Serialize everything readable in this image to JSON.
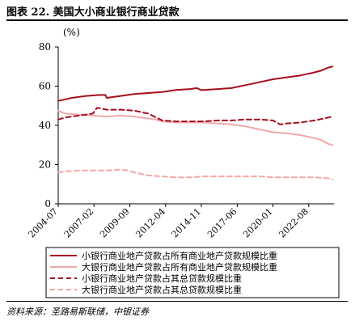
{
  "title": "图表 22. 美国大小商业银行商业贷款",
  "source": "资料来源：圣路易斯联储，中银证券",
  "colors": {
    "dark": "#a50f1e",
    "light": "#f2a7a9"
  },
  "chart_data": {
    "type": "line",
    "ylabel": "(%)",
    "ylim": [
      0,
      80
    ],
    "yticks": [
      "0",
      "20",
      "40",
      "60",
      "80"
    ],
    "xlim": [
      2004.5,
      2024.4
    ],
    "xticks": [
      {
        "label": "2004-07",
        "x": 2004.5
      },
      {
        "label": "2007-02",
        "x": 2007.08
      },
      {
        "label": "2009-09",
        "x": 2009.67
      },
      {
        "label": "2012-04",
        "x": 2012.25
      },
      {
        "label": "2014-11",
        "x": 2014.83
      },
      {
        "label": "2017-06",
        "x": 2017.42
      },
      {
        "label": "2020-01",
        "x": 2020.0
      },
      {
        "label": "2022-08",
        "x": 2022.58
      }
    ],
    "grid": false,
    "legend_position": "bottom",
    "series": [
      {
        "name": "小银行商业地产贷款占所有商业地产贷款规模比重",
        "color": "#a50f1e",
        "dash": "solid",
        "x": [
          2004.5,
          2005.5,
          2006.5,
          2007.5,
          2007.9,
          2008.0,
          2009.0,
          2010.0,
          2011.0,
          2012.0,
          2013.0,
          2014.0,
          2014.5,
          2014.8,
          2015.0,
          2016.0,
          2017.0,
          2018.0,
          2019.0,
          2020.0,
          2021.0,
          2022.0,
          2023.0,
          2023.5,
          2024.0,
          2024.3
        ],
        "y": [
          52.5,
          54,
          55,
          55.5,
          55.5,
          54,
          55,
          56,
          56.5,
          57,
          58,
          58.5,
          59,
          58,
          58,
          58.5,
          59,
          60.5,
          62,
          63.5,
          64.5,
          65.5,
          67,
          68,
          69.5,
          70
        ]
      },
      {
        "name": "大银行商业地产贷款占所有商业地产贷款规模比重",
        "color": "#f2a7a9",
        "dash": "solid",
        "x": [
          2004.5,
          2005.0,
          2006.0,
          2007.0,
          2008.0,
          2009.0,
          2010.0,
          2011.0,
          2011.5,
          2012.0,
          2013.0,
          2014.0,
          2015.0,
          2016.0,
          2017.0,
          2018.0,
          2019.0,
          2020.0,
          2021.0,
          2022.0,
          2023.0,
          2023.5,
          2024.0,
          2024.3
        ],
        "y": [
          47.5,
          46,
          45.5,
          45,
          44.5,
          45,
          44.5,
          43.5,
          43,
          42,
          41.5,
          41.5,
          41.5,
          41,
          40.5,
          39.5,
          38,
          36.5,
          36,
          35,
          33.5,
          32.5,
          30.5,
          30
        ]
      },
      {
        "name": "小银行商业地产贷款占其总贷款规模比重",
        "color": "#a50f1e",
        "dash": "dashed",
        "x": [
          2004.5,
          2005.0,
          2006.0,
          2007.0,
          2007.3,
          2008.0,
          2009.0,
          2010.0,
          2011.0,
          2012.0,
          2013.0,
          2014.0,
          2015.0,
          2016.0,
          2017.0,
          2018.0,
          2019.0,
          2020.0,
          2020.5,
          2021.0,
          2022.0,
          2023.0,
          2024.0,
          2024.3
        ],
        "y": [
          43,
          44,
          45,
          46,
          49,
          48,
          48,
          47.5,
          46,
          42.5,
          42,
          42,
          42,
          42.5,
          42.5,
          43,
          43,
          42.5,
          40.5,
          41,
          41.5,
          42.5,
          44,
          44.5
        ]
      },
      {
        "name": "大银行商业地产贷款占其总贷款规模比重",
        "color": "#f2a7a9",
        "dash": "dashed",
        "x": [
          2004.5,
          2005.0,
          2006.0,
          2007.0,
          2008.0,
          2009.0,
          2009.5,
          2010.0,
          2011.0,
          2012.0,
          2013.0,
          2014.0,
          2015.0,
          2016.0,
          2017.0,
          2018.0,
          2019.0,
          2020.0,
          2021.0,
          2022.0,
          2023.0,
          2024.0,
          2024.3
        ],
        "y": [
          16,
          16.5,
          17,
          17,
          17,
          17.5,
          17,
          16,
          14.5,
          14,
          13.5,
          13.5,
          14,
          14,
          14,
          14,
          14,
          13.5,
          13.5,
          13.5,
          13.5,
          13,
          12.5
        ]
      }
    ]
  }
}
